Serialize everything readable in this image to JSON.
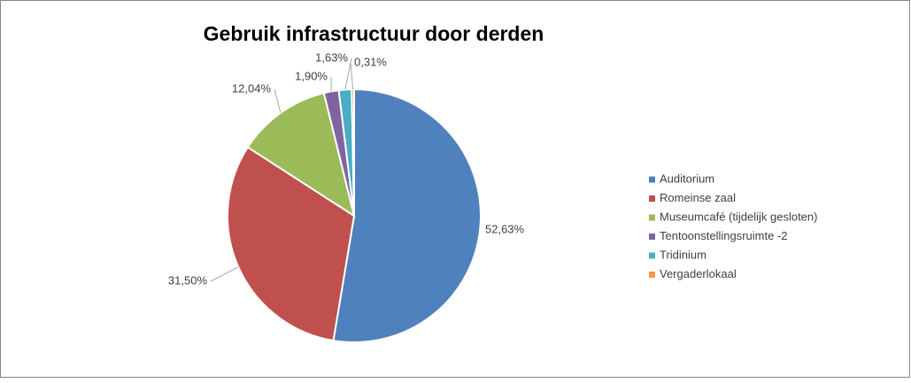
{
  "chart_data": {
    "type": "pie",
    "title": "Gebruik infrastructuur door derden",
    "categories": [
      "Auditorium",
      "Romeinse zaal",
      "Museumcafé (tijdelijk gesloten)",
      "Tentoonstellingsruimte -2",
      "Tridinium",
      "Vergaderlokaal"
    ],
    "values": [
      52.63,
      31.5,
      12.04,
      1.9,
      1.63,
      0.31
    ],
    "value_labels": [
      "52,63%",
      "31,50%",
      "12,04%",
      "1,90%",
      "1,63%",
      "0,31%"
    ],
    "colors": [
      "#4f81bd",
      "#c0504d",
      "#9bbb59",
      "#8064a2",
      "#4bacc6",
      "#f79646"
    ],
    "legend": "right"
  }
}
